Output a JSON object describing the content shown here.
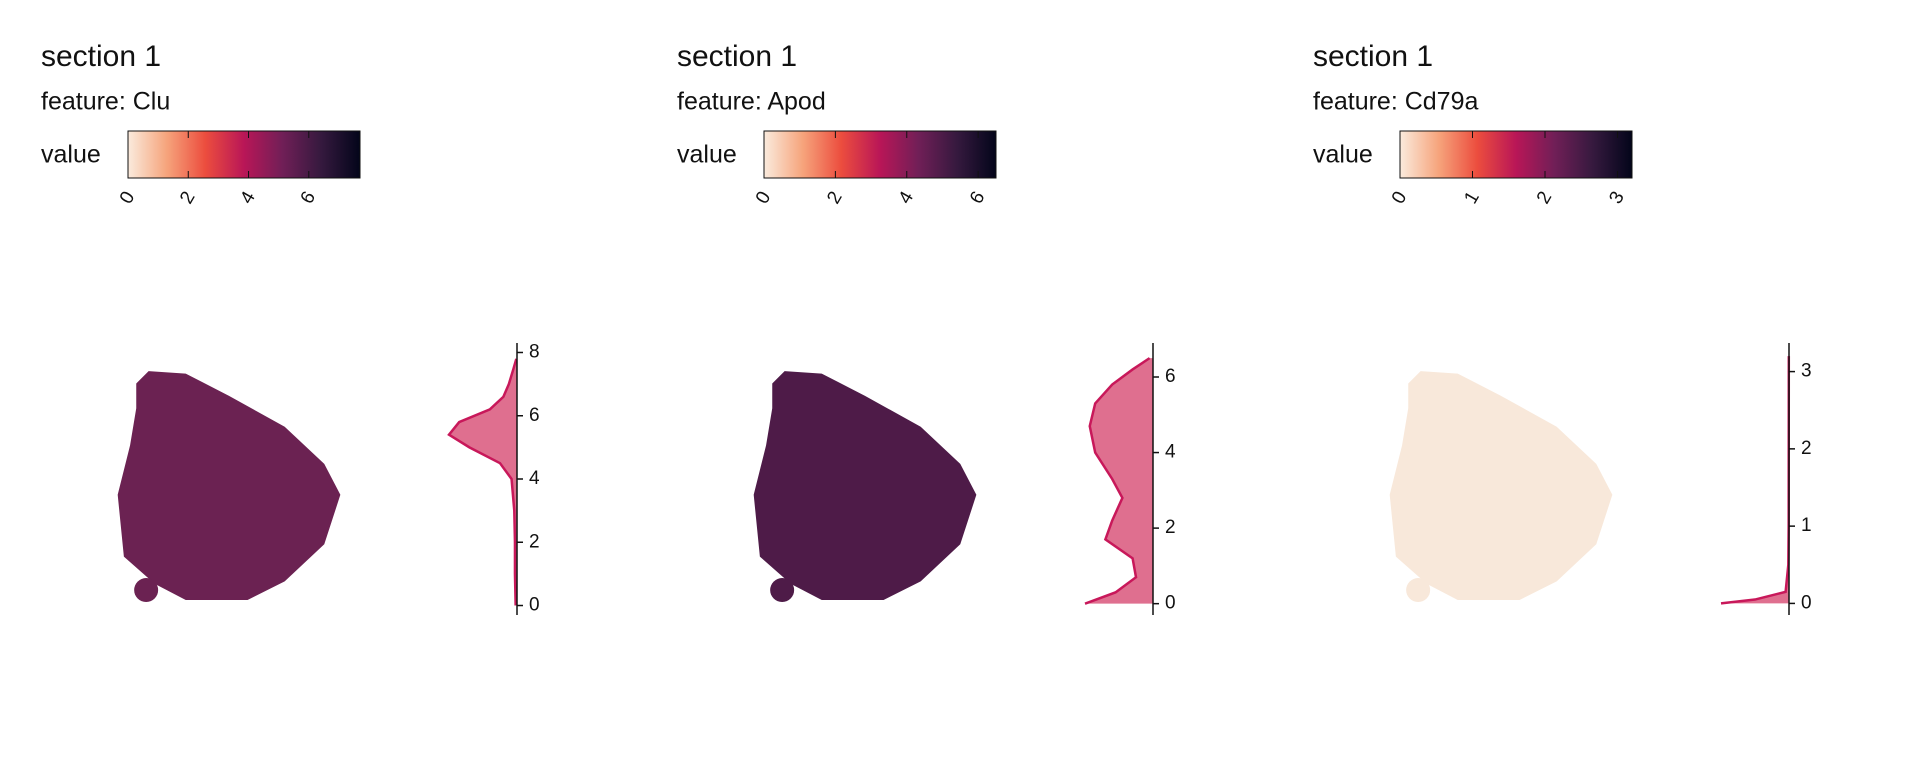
{
  "chart_data": [
    {
      "type": "density",
      "title": "section 1",
      "subtitle": "feature:  Clu",
      "legend_title": "value",
      "clim": [
        0,
        7.7
      ],
      "cticks": [
        0,
        2,
        4,
        6
      ],
      "colors": [
        "#faebdd",
        "#f6a47c",
        "#ec4d3e",
        "#b91657",
        "#701f57",
        "#35193e",
        "#03051a"
      ],
      "tissue_color": "#6b2252",
      "x": [
        0,
        1,
        2,
        3,
        4,
        4.5,
        5,
        5.4,
        5.8,
        6.2,
        6.6,
        7,
        7.5,
        7.8
      ],
      "values": [
        0.02,
        0.03,
        0.03,
        0.04,
        0.08,
        0.25,
        0.7,
        1.0,
        0.85,
        0.4,
        0.2,
        0.12,
        0.05,
        0.01
      ],
      "ylim": [
        -0.3,
        8.3
      ],
      "yticks": [
        0,
        2,
        4,
        6,
        8
      ],
      "xlim": [
        0,
        1
      ],
      "color": "#c8185a"
    },
    {
      "type": "density",
      "title": "section 1",
      "subtitle": "feature:  Apod",
      "legend_title": "value",
      "clim": [
        0,
        6.5
      ],
      "cticks": [
        0,
        2,
        4,
        6
      ],
      "colors": [
        "#faebdd",
        "#f6a47c",
        "#ec4d3e",
        "#b91657",
        "#701f57",
        "#35193e",
        "#03051a"
      ],
      "tissue_color": "#4e1b48",
      "x": [
        0,
        0.3,
        0.7,
        1.2,
        1.7,
        2.2,
        2.8,
        3.3,
        4,
        4.7,
        5.3,
        5.8,
        6.2,
        6.5
      ],
      "values": [
        1.0,
        0.55,
        0.25,
        0.3,
        0.7,
        0.6,
        0.45,
        0.6,
        0.85,
        0.93,
        0.85,
        0.6,
        0.3,
        0.05
      ],
      "ylim": [
        -0.3,
        6.9
      ],
      "yticks": [
        0,
        2,
        4,
        6
      ],
      "xlim": [
        0,
        1
      ],
      "color": "#c8185a"
    },
    {
      "type": "density",
      "title": "section 1",
      "subtitle": "feature:  Cd79a",
      "legend_title": "value",
      "clim": [
        0,
        3.2
      ],
      "cticks": [
        0,
        1,
        2,
        3
      ],
      "colors": [
        "#faebdd",
        "#f6a47c",
        "#ec4d3e",
        "#b91657",
        "#701f57",
        "#35193e",
        "#03051a"
      ],
      "tissue_color": "#f8e8da",
      "x": [
        0,
        0.05,
        0.15,
        0.5,
        1,
        3.2
      ],
      "values": [
        1.0,
        0.5,
        0.05,
        0.01,
        0.005,
        0.003
      ],
      "ylim": [
        -0.15,
        3.37
      ],
      "yticks": [
        0,
        1,
        2,
        3
      ],
      "xlim": [
        0,
        1
      ],
      "color": "#c8185a"
    }
  ]
}
